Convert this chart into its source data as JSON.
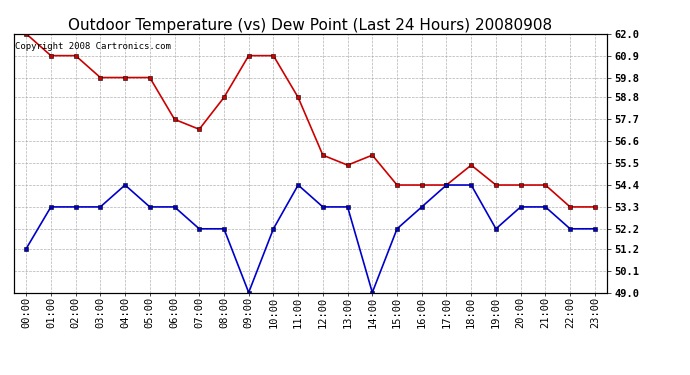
{
  "title": "Outdoor Temperature (vs) Dew Point (Last 24 Hours) 20080908",
  "copyright_text": "Copyright 2008 Cartronics.com",
  "hours": [
    "00:00",
    "01:00",
    "02:00",
    "03:00",
    "04:00",
    "05:00",
    "06:00",
    "07:00",
    "08:00",
    "09:00",
    "10:00",
    "11:00",
    "12:00",
    "13:00",
    "14:00",
    "15:00",
    "16:00",
    "17:00",
    "18:00",
    "19:00",
    "20:00",
    "21:00",
    "22:00",
    "23:00"
  ],
  "temp_data": [
    62.0,
    60.9,
    60.9,
    59.8,
    59.8,
    59.8,
    57.7,
    57.2,
    58.8,
    60.9,
    60.9,
    58.8,
    55.9,
    55.4,
    55.9,
    54.4,
    54.4,
    54.4,
    55.4,
    54.4,
    54.4,
    54.4,
    53.3,
    53.3
  ],
  "dew_data": [
    51.2,
    53.3,
    53.3,
    53.3,
    54.4,
    53.3,
    53.3,
    52.2,
    52.2,
    49.0,
    52.2,
    54.4,
    53.3,
    53.3,
    49.0,
    52.2,
    53.3,
    54.4,
    54.4,
    52.2,
    53.3,
    53.3,
    52.2,
    52.2
  ],
  "temp_color": "#cc0000",
  "dew_color": "#0000cc",
  "bg_color": "#ffffff",
  "grid_color": "#aaaaaa",
  "ylim_min": 49.0,
  "ylim_max": 62.0,
  "yticks": [
    49.0,
    50.1,
    51.2,
    52.2,
    53.3,
    54.4,
    55.5,
    56.6,
    57.7,
    58.8,
    59.8,
    60.9,
    62.0
  ],
  "title_fontsize": 11,
  "copyright_fontsize": 6.5,
  "tick_fontsize": 7.5,
  "marker": "s",
  "marker_size": 3,
  "line_width": 1.2
}
